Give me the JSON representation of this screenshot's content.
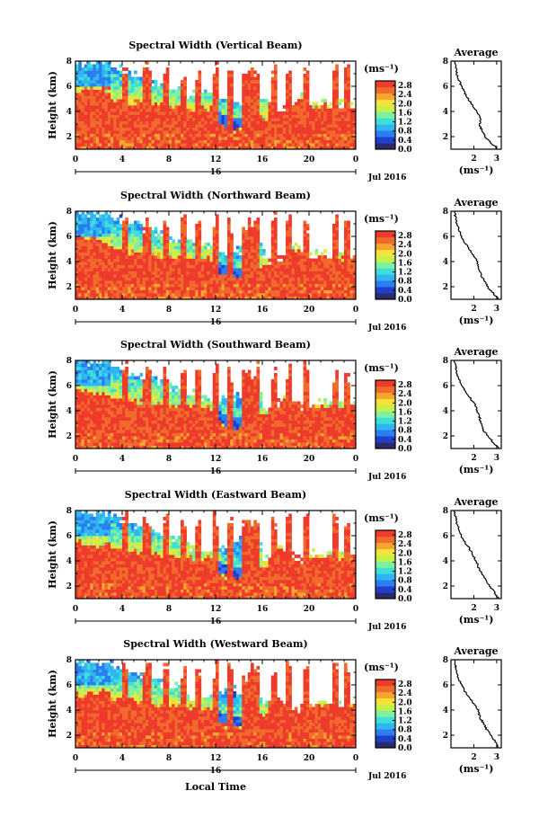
{
  "figure": {
    "xaxis_label": "Local Time",
    "date_label": "Jul 2016",
    "day_label": "16"
  },
  "colorbar": {
    "unit_label": "(ms⁻¹)",
    "tick_labels": [
      "2.8",
      "2.4",
      "2.0",
      "1.6",
      "1.2",
      "0.8",
      "0.4",
      "0.0"
    ],
    "range": [
      0.0,
      3.0
    ],
    "colors": [
      "#2b2b6b",
      "#1f3fcc",
      "#2b7ef0",
      "#30b4f2",
      "#3de0d8",
      "#7ef0a0",
      "#c8f04a",
      "#f5e23a",
      "#f7a531",
      "#f06a2c",
      "#ee3b2c"
    ]
  },
  "chart_data": [
    {
      "type": "heatmap",
      "title": "Spectral Width (Vertical Beam)",
      "ylabel": "Height (km)",
      "xlabel": "Local Time",
      "x_ticks": [
        "0",
        "4",
        "8",
        "12",
        "16",
        "20",
        "0"
      ],
      "y_ticks": [
        "2",
        "4",
        "6",
        "8"
      ],
      "xlim": [
        0,
        24
      ],
      "ylim": [
        1,
        8
      ],
      "z_unit": "ms⁻¹",
      "z_range": [
        0.0,
        3.0
      ],
      "average": {
        "title": "Average",
        "xlabel": "(ms⁻¹)",
        "x_ticks": [
          "2",
          "3"
        ],
        "y_ticks": [
          "2",
          "4",
          "6",
          "8"
        ],
        "xlim": [
          1.0,
          3.2
        ],
        "ylim": [
          1,
          8
        ],
        "height_km": [
          1.0,
          1.5,
          2.0,
          2.5,
          3.0,
          3.5,
          4.0,
          4.5,
          5.0,
          5.5,
          6.0,
          6.5,
          7.0,
          7.5,
          8.0
        ],
        "width_ms": [
          3.05,
          2.75,
          2.5,
          2.35,
          2.25,
          2.3,
          2.1,
          1.95,
          1.75,
          1.6,
          1.45,
          1.35,
          1.25,
          1.2,
          1.15
        ]
      }
    },
    {
      "type": "heatmap",
      "title": "Spectral Width (Northward Beam)",
      "ylabel": "Height (km)",
      "xlabel": "Local Time",
      "x_ticks": [
        "0",
        "4",
        "8",
        "12",
        "16",
        "20",
        "0"
      ],
      "y_ticks": [
        "2",
        "4",
        "6",
        "8"
      ],
      "xlim": [
        0,
        24
      ],
      "ylim": [
        1,
        8
      ],
      "z_unit": "ms⁻¹",
      "z_range": [
        0.0,
        3.0
      ],
      "average": {
        "title": "Average",
        "xlabel": "(ms⁻¹)",
        "x_ticks": [
          "2",
          "3"
        ],
        "y_ticks": [
          "2",
          "4",
          "6",
          "8"
        ],
        "xlim": [
          1.0,
          3.2
        ],
        "ylim": [
          1,
          8
        ],
        "height_km": [
          1.0,
          1.5,
          2.0,
          2.5,
          3.0,
          3.5,
          4.0,
          4.5,
          5.0,
          5.5,
          6.0,
          6.5,
          7.0,
          7.5,
          8.0
        ],
        "width_ms": [
          3.1,
          2.85,
          2.6,
          2.45,
          2.3,
          2.2,
          2.15,
          2.0,
          1.8,
          1.6,
          1.45,
          1.35,
          1.25,
          1.2,
          1.15
        ]
      }
    },
    {
      "type": "heatmap",
      "title": "Spectral Width (Southward Beam)",
      "ylabel": "Height (km)",
      "xlabel": "Local Time",
      "x_ticks": [
        "0",
        "4",
        "8",
        "12",
        "16",
        "20",
        "0"
      ],
      "y_ticks": [
        "2",
        "4",
        "6",
        "8"
      ],
      "xlim": [
        0,
        24
      ],
      "ylim": [
        1,
        8
      ],
      "z_unit": "ms⁻¹",
      "z_range": [
        0.0,
        3.0
      ],
      "average": {
        "title": "Average",
        "xlabel": "(ms⁻¹)",
        "x_ticks": [
          "2",
          "3"
        ],
        "y_ticks": [
          "2",
          "4",
          "6",
          "8"
        ],
        "xlim": [
          1.0,
          3.2
        ],
        "ylim": [
          1,
          8
        ],
        "height_km": [
          1.0,
          1.5,
          2.0,
          2.5,
          3.0,
          3.5,
          4.0,
          4.5,
          5.0,
          5.5,
          6.0,
          6.5,
          7.0,
          7.5,
          8.0
        ],
        "width_ms": [
          3.1,
          2.85,
          2.6,
          2.4,
          2.3,
          2.25,
          2.15,
          2.05,
          1.85,
          1.65,
          1.45,
          1.35,
          1.25,
          1.2,
          1.15
        ]
      }
    },
    {
      "type": "heatmap",
      "title": "Spectral Width (Eastward Beam)",
      "ylabel": "Height (km)",
      "xlabel": "Local Time",
      "x_ticks": [
        "0",
        "4",
        "8",
        "12",
        "16",
        "20",
        "0"
      ],
      "y_ticks": [
        "2",
        "4",
        "6",
        "8"
      ],
      "xlim": [
        0,
        24
      ],
      "ylim": [
        1,
        8
      ],
      "z_unit": "ms⁻¹",
      "z_range": [
        0.0,
        3.0
      ],
      "average": {
        "title": "Average",
        "xlabel": "(ms⁻¹)",
        "x_ticks": [
          "2",
          "3"
        ],
        "y_ticks": [
          "2",
          "4",
          "6",
          "8"
        ],
        "xlim": [
          1.0,
          3.2
        ],
        "ylim": [
          1,
          8
        ],
        "height_km": [
          1.0,
          1.5,
          2.0,
          2.5,
          3.0,
          3.5,
          4.0,
          4.5,
          5.0,
          5.5,
          6.0,
          6.5,
          7.0,
          7.5,
          8.0
        ],
        "width_ms": [
          3.1,
          2.9,
          2.7,
          2.5,
          2.35,
          2.2,
          2.1,
          1.95,
          1.8,
          1.6,
          1.45,
          1.35,
          1.25,
          1.2,
          1.15
        ]
      }
    },
    {
      "type": "heatmap",
      "title": "Spectral Width (Westward Beam)",
      "ylabel": "Height (km)",
      "xlabel": "Local Time",
      "x_ticks": [
        "0",
        "4",
        "8",
        "12",
        "16",
        "20",
        "0"
      ],
      "y_ticks": [
        "2",
        "4",
        "6",
        "8"
      ],
      "xlim": [
        0,
        24
      ],
      "ylim": [
        1,
        8
      ],
      "z_unit": "ms⁻¹",
      "z_range": [
        0.0,
        3.0
      ],
      "average": {
        "title": "Average",
        "xlabel": "(ms⁻¹)",
        "x_ticks": [
          "2",
          "3"
        ],
        "y_ticks": [
          "2",
          "4",
          "6",
          "8"
        ],
        "xlim": [
          1.0,
          3.2
        ],
        "ylim": [
          1,
          8
        ],
        "height_km": [
          1.0,
          1.5,
          2.0,
          2.5,
          3.0,
          3.5,
          4.0,
          4.5,
          5.0,
          5.5,
          6.0,
          6.5,
          7.0,
          7.5,
          8.0
        ],
        "width_ms": [
          3.1,
          2.95,
          2.75,
          2.55,
          2.4,
          2.25,
          2.2,
          2.0,
          1.8,
          1.6,
          1.45,
          1.35,
          1.25,
          1.2,
          1.15
        ]
      }
    }
  ]
}
